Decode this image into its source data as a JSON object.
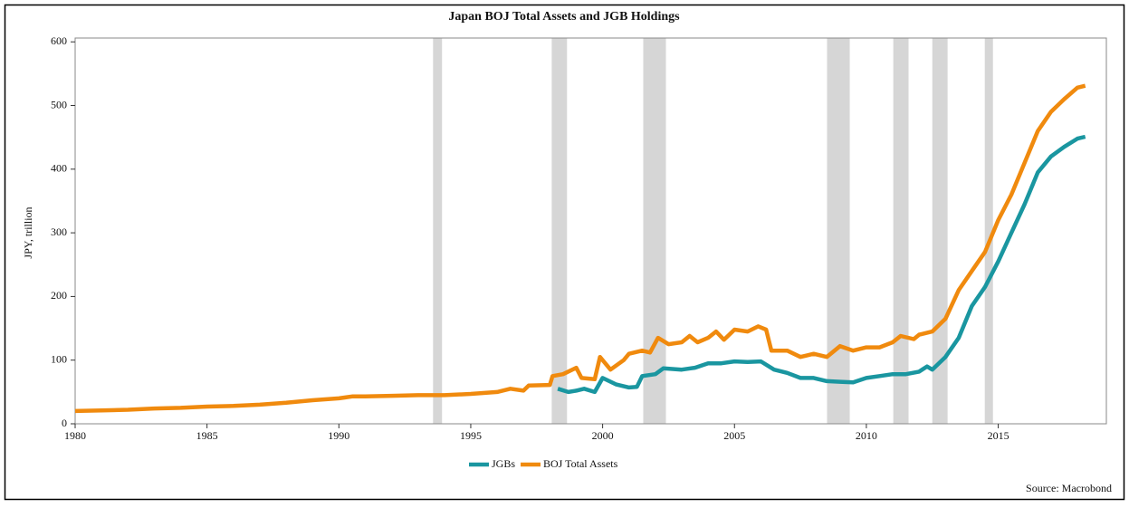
{
  "chart_data": {
    "type": "line",
    "title": "Japan BOJ Total Assets and JGB Holdings",
    "y_label": "JPY, trillion",
    "source": "Source: Macrobond",
    "xlim": [
      1980,
      2019.1
    ],
    "xticks": [
      1980,
      1985,
      1990,
      1995,
      2000,
      2005,
      2010,
      2015
    ],
    "ylim": [
      0,
      606
    ],
    "yticks": [
      0,
      100,
      200,
      300,
      400,
      500,
      600
    ],
    "shaded_periods": [
      [
        1993.57,
        1993.91
      ],
      [
        1998.07,
        1998.65
      ],
      [
        2001.54,
        2002.4
      ],
      [
        2008.51,
        2009.37
      ],
      [
        2011.02,
        2011.6
      ],
      [
        2012.5,
        2013.08
      ],
      [
        2014.49,
        2014.8
      ]
    ],
    "shade_color": "#d6d6d6",
    "legend": "bottom",
    "series": [
      {
        "name": "JGBs",
        "color": "#1a96a0",
        "x": [
          1998.3,
          1998.7,
          1999,
          1999.3,
          1999.7,
          2000,
          2000.5,
          2001,
          2001.3,
          2001.5,
          2002,
          2002.3,
          2003,
          2003.5,
          2004,
          2004.5,
          2005,
          2005.5,
          2006,
          2006.5,
          2007,
          2007.5,
          2008,
          2008.5,
          2009,
          2009.5,
          2010,
          2010.5,
          2011,
          2011.5,
          2012,
          2012.3,
          2012.5,
          2013,
          2013.5,
          2014,
          2014.5,
          2015,
          2015.5,
          2016,
          2016.5,
          2017,
          2017.5,
          2018,
          2018.3
        ],
        "values": [
          55,
          50,
          52,
          55,
          50,
          72,
          62,
          57,
          58,
          75,
          78,
          87,
          85,
          88,
          95,
          95,
          98,
          97,
          98,
          85,
          80,
          72,
          72,
          67,
          66,
          65,
          72,
          75,
          78,
          78,
          82,
          90,
          85,
          105,
          135,
          185,
          215,
          255,
          300,
          345,
          395,
          420,
          435,
          448,
          451
        ]
      },
      {
        "name": "BOJ Total Assets",
        "color": "#f08a0e",
        "x": [
          1980,
          1981,
          1982,
          1983,
          1984,
          1985,
          1986,
          1987,
          1988,
          1989,
          1990,
          1990.5,
          1991,
          1992,
          1993,
          1994,
          1995,
          1996,
          1996.5,
          1997,
          1997.2,
          1998,
          1998.1,
          1998.5,
          1999,
          1999.2,
          1999.7,
          1999.9,
          2000.1,
          2000.3,
          2000.8,
          2001,
          2001.5,
          2001.8,
          2002.1,
          2002.5,
          2003,
          2003.3,
          2003.6,
          2004,
          2004.3,
          2004.6,
          2005,
          2005.5,
          2005.9,
          2006.2,
          2006.4,
          2007,
          2007.5,
          2008,
          2008.5,
          2009,
          2009.5,
          2010,
          2010.5,
          2011,
          2011.3,
          2011.8,
          2012,
          2012.5,
          2013,
          2013.5,
          2014,
          2014.5,
          2015,
          2015.5,
          2016,
          2016.5,
          2017,
          2017.5,
          2018,
          2018.3
        ],
        "values": [
          20,
          21,
          22,
          24,
          25,
          27,
          28,
          30,
          33,
          37,
          40,
          43,
          43,
          44,
          45,
          45,
          47,
          50,
          55,
          52,
          60,
          61,
          75,
          78,
          88,
          72,
          70,
          105,
          95,
          85,
          100,
          110,
          115,
          112,
          135,
          125,
          128,
          138,
          128,
          135,
          145,
          132,
          148,
          145,
          153,
          148,
          115,
          115,
          105,
          110,
          105,
          122,
          115,
          120,
          120,
          128,
          138,
          133,
          140,
          145,
          165,
          210,
          240,
          270,
          320,
          360,
          410,
          460,
          490,
          510,
          528,
          531
        ]
      }
    ]
  }
}
